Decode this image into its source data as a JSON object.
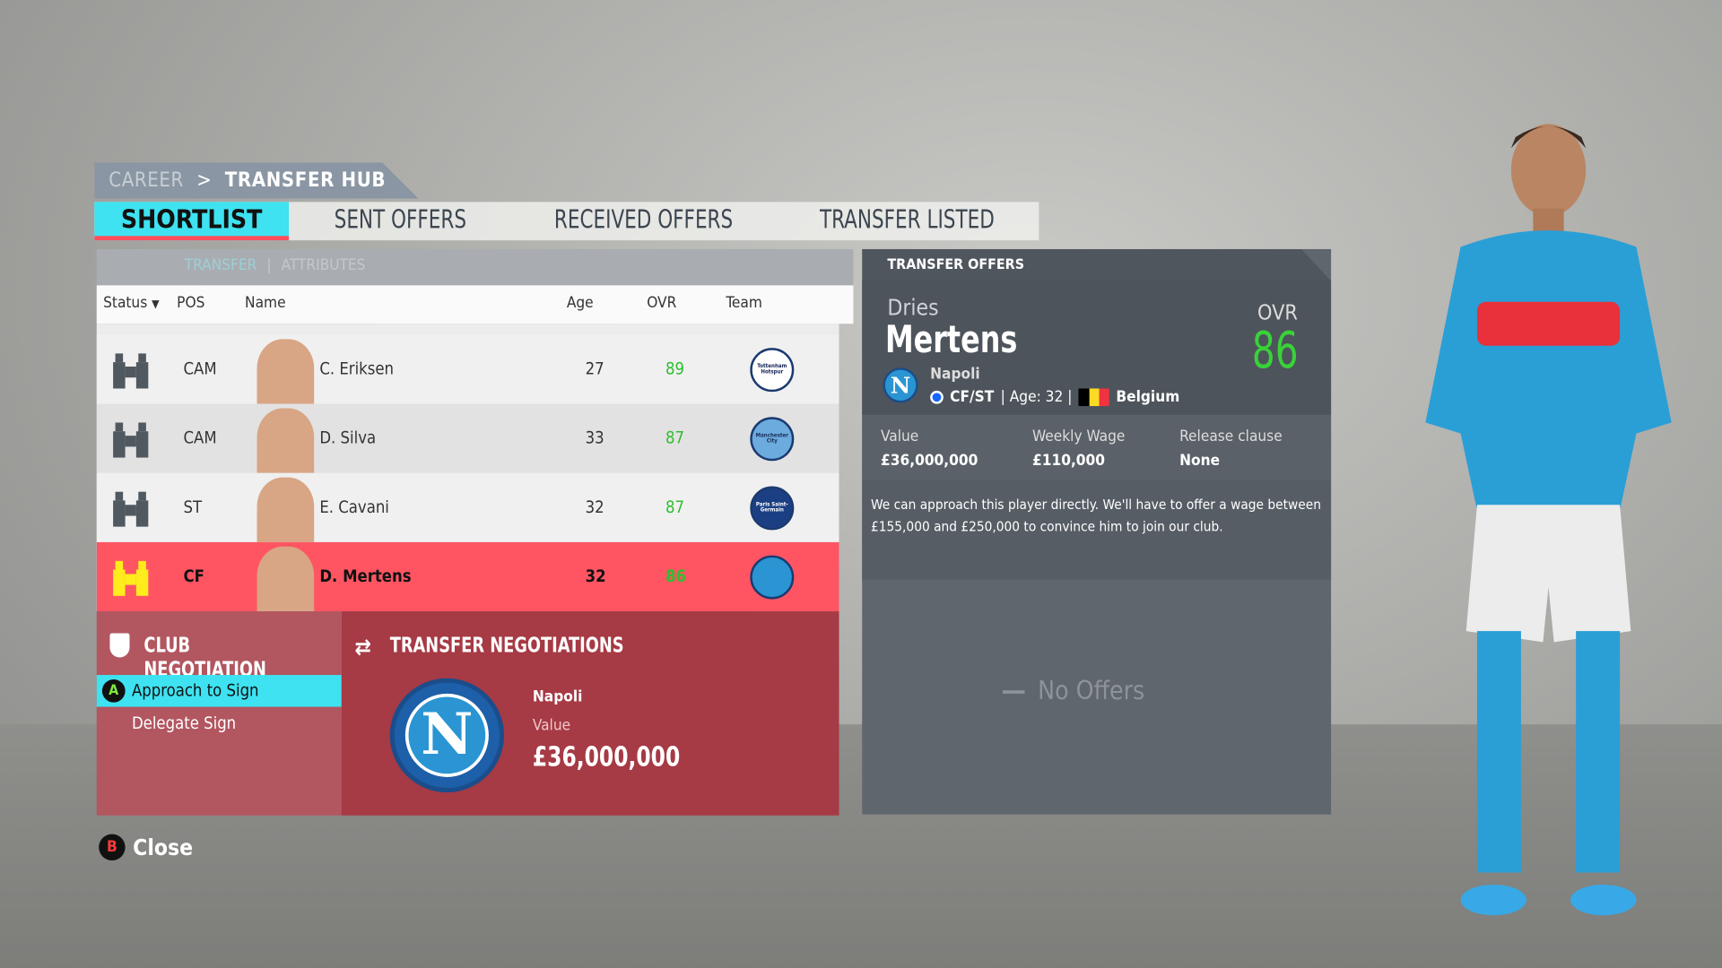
{
  "breadcrumb": {
    "parent": "CAREER",
    "separator": ">",
    "current": "TRANSFER HUB"
  },
  "tabs": [
    {
      "label": "SHORTLIST",
      "active": true
    },
    {
      "label": "SENT OFFERS"
    },
    {
      "label": "RECEIVED OFFERS"
    },
    {
      "label": "TRANSFER LISTED"
    }
  ],
  "subtabs": {
    "transfer": "TRANSFER",
    "separator": "|",
    "attributes": "ATTRIBUTES"
  },
  "columns": {
    "status": "Status",
    "pos": "POS",
    "name": "Name",
    "age": "Age",
    "ovr": "OVR",
    "team": "Team"
  },
  "players": [
    {
      "pos": "CAM",
      "name": "C. Eriksen",
      "age": "27",
      "ovr": "89",
      "team": "Tottenham Hotspur",
      "crest_color": "#ffffff"
    },
    {
      "pos": "CAM",
      "name": "D. Silva",
      "age": "33",
      "ovr": "87",
      "team": "Manchester City",
      "crest_color": "#6cabdd"
    },
    {
      "pos": "ST",
      "name": "E. Cavani",
      "age": "32",
      "ovr": "87",
      "team": "Paris Saint-Germain",
      "crest_color": "#1b3f82"
    },
    {
      "pos": "CF",
      "name": "D. Mertens",
      "age": "32",
      "ovr": "86",
      "team": "Napoli",
      "crest_color": "#2a95d2",
      "selected": true
    }
  ],
  "club_negotiation": {
    "title": "CLUB NEGOTIATION",
    "options": [
      {
        "label": "Approach to Sign",
        "button": "A",
        "active": true
      },
      {
        "label": "Delegate Sign"
      }
    ]
  },
  "transfer_negotiations": {
    "title": "TRANSFER NEGOTIATIONS",
    "club": "Napoli",
    "value_label": "Value",
    "value": "£36,000,000",
    "crest_letter": "N"
  },
  "transfer_offers": {
    "title": "TRANSFER OFFERS",
    "first_name": "Dries",
    "last_name": "Mertens",
    "ovr_label": "OVR",
    "ovr": "86",
    "club": "Napoli",
    "positions": "CF/ST",
    "age": "| Age: 32 |",
    "nation": "Belgium",
    "value_label": "Value",
    "value": "£36,000,000",
    "wage_label": "Weekly Wage",
    "wage": "£110,000",
    "release_label": "Release clause",
    "release": "None",
    "description": "We can approach this player directly. We'll have to offer a wage between £155,000 and £250,000 to convince him to join our club.",
    "no_offers": "No Offers"
  },
  "footer": {
    "close_button": "B",
    "close_label": "Close"
  },
  "colors": {
    "accent": "#3ee2f0",
    "selected_row": "#ff5563",
    "ovr_green": "#2fbe2f",
    "tab_underline": "#ff4d5c"
  }
}
